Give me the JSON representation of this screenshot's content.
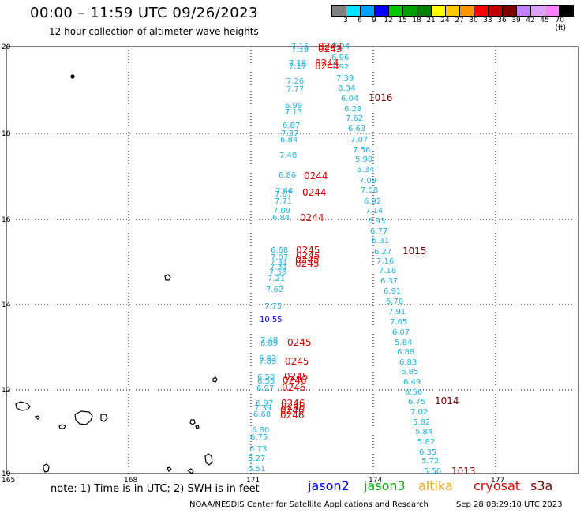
{
  "header": {
    "title": "00:00 – 11:59 UTC 09/26/2023",
    "subtitle": "12 hour collection of altimeter wave heights"
  },
  "colorbar": {
    "colors": [
      "#808080",
      "#00e5ff",
      "#00a0ff",
      "#0000ff",
      "#00c800",
      "#00a000",
      "#008000",
      "#ffff00",
      "#ffc800",
      "#ff9600",
      "#ff0000",
      "#c00000",
      "#800000",
      "#c080ff",
      "#e0a0ff",
      "#ff80ff",
      "#000000"
    ],
    "labels": [
      "3",
      "6",
      "9",
      "12",
      "15",
      "18",
      "21",
      "24",
      "27",
      "30",
      "33",
      "36",
      "39",
      "42",
      "45",
      "70 (ft)"
    ]
  },
  "axes": {
    "lon_labels": [
      "165",
      "168",
      "171",
      "174",
      "177"
    ],
    "lat_labels": [
      "20",
      "18",
      "16",
      "14",
      "12",
      "10"
    ]
  },
  "colors": {
    "jason3_swh": "#1eb4e6",
    "jason2_swh": "#0000c8",
    "cryosat_time": "#e60000",
    "dark_time": "#780000"
  },
  "track_a": {
    "swh": [
      "7.16",
      "7.19",
      "7.18",
      "7.17",
      "7.26",
      "7.77",
      "6.99",
      "7.13",
      "6.87",
      "7.37",
      "6.84",
      "7.48",
      "6.86",
      "7.66",
      "7.67",
      "7.71",
      "7.09",
      "6.84",
      "6.68",
      "7.07",
      "7.31",
      "7.31",
      "7.38",
      "7.21",
      "7.62",
      "7.75",
      "7.48",
      "6.89",
      "6.83",
      "7.89",
      "6.50",
      "6.55",
      "6.97",
      "6.97",
      "7.39",
      "6.68",
      "6.80",
      "6.75",
      "6.73",
      "5.27",
      "6.51"
    ],
    "swh_blue": "10.55",
    "times": [
      "0243",
      "0243",
      "0244",
      "0244",
      "0244",
      "0244",
      "0244",
      "0245",
      "0245",
      "0245",
      "0245",
      "0245",
      "0245",
      "0245",
      "0246",
      "0246",
      "0246",
      "0246",
      "0246",
      "0246"
    ]
  },
  "track_b": {
    "swh": [
      "7.94",
      "6.96",
      "7.92",
      "7.39",
      "8.34",
      "6.04",
      "6.28",
      "7.62",
      "6.63",
      "7.07",
      "7.56",
      "5.98",
      "6.34",
      "7.09",
      "7.08",
      "6.92",
      "7.14",
      "6.93",
      "6.77",
      "6.31",
      "6.27",
      "7.16",
      "7.18",
      "6.37",
      "6.91",
      "6.78",
      "7.91",
      "7.65",
      "6.07",
      "5.84",
      "6.88",
      "6.83",
      "6.85",
      "6.49",
      "6.56",
      "6.75",
      "7.02",
      "5.82",
      "5.84",
      "5.82",
      "6.35",
      "5.72",
      "5.50"
    ],
    "times": [
      "1016",
      "1015",
      "1014",
      "1013"
    ]
  },
  "bottom": {
    "note": "note: 1) Time is in UTC; 2) SWH is in feet",
    "legend": [
      {
        "label": "jason2",
        "color": "#0000ff"
      },
      {
        "label": "jason3",
        "color": "#00b400"
      },
      {
        "label": "altika",
        "color": "#ffa500"
      },
      {
        "label": "cryosat",
        "color": "#e60000"
      },
      {
        "label": "s3a",
        "color": "#800000"
      }
    ],
    "footer_left": "NOAA/NESDIS Center for Satellite Applications and Research",
    "footer_right": "Sep 28 08:29:10 UTC 2023"
  }
}
